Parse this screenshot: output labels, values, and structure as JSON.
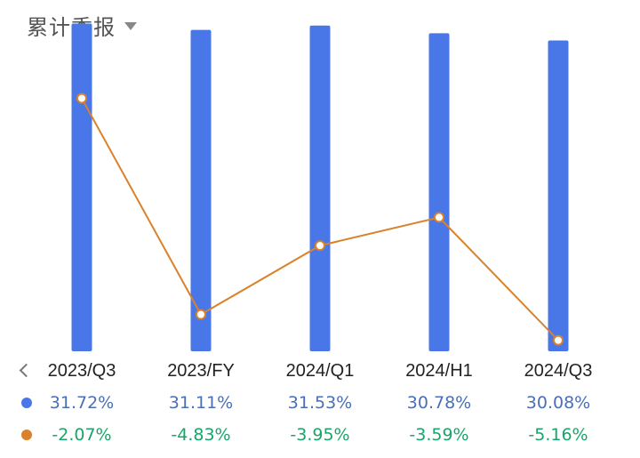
{
  "header": {
    "title": "累计季报",
    "dropdown_icon": "caret-down-icon"
  },
  "nav": {
    "back_icon": "chevron-left-icon"
  },
  "chart_data": {
    "type": "bar",
    "categories": [
      "2023/Q3",
      "2023/FY",
      "2024/Q1",
      "2024/H1",
      "2024/Q3"
    ],
    "series": [
      {
        "type": "bar",
        "color": "#4a77e8",
        "values": [
          31.72,
          31.11,
          31.53,
          30.78,
          30.08
        ],
        "labels": [
          "31.72%",
          "31.11%",
          "31.53%",
          "30.78%",
          "30.08%"
        ]
      },
      {
        "type": "line",
        "color": "#d9822b",
        "values": [
          -2.07,
          -4.83,
          -3.95,
          -3.59,
          -5.16
        ],
        "labels": [
          "-2.07%",
          "-4.83%",
          "-3.95%",
          "-3.59%",
          "-5.16%"
        ]
      }
    ],
    "bar_axis_range": [
      0,
      34
    ],
    "line_axis_range": [
      -5.3,
      -1.95
    ],
    "grid": false,
    "legend": "none"
  }
}
